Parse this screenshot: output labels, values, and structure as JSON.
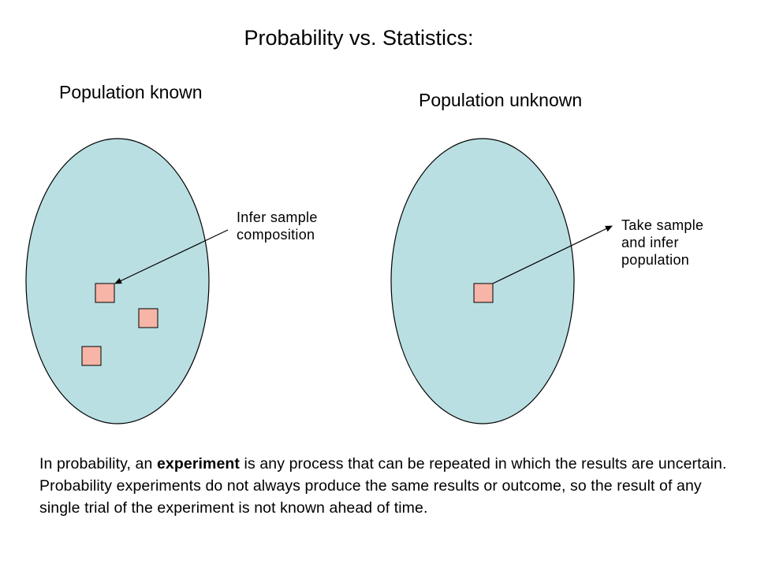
{
  "title": "Probability vs. Statistics:",
  "left_panel": {
    "heading": "Population known",
    "label": "Infer sample composition",
    "colors": {
      "population": "#b9dfe2",
      "sample": "#f6b5a6"
    }
  },
  "right_panel": {
    "heading": "Population unknown",
    "label": "Take sample and infer population",
    "colors": {
      "population": "#b9dfe2",
      "sample": "#f6b5a6"
    }
  },
  "paragraph": {
    "before": "In probability, an ",
    "bold": "experiment",
    "after": " is any process that can be repeated in which the results are uncertain.  Probability experiments do not always produce the same results or outcome, so the result of any single trial of the experiment is not known ahead of time."
  }
}
